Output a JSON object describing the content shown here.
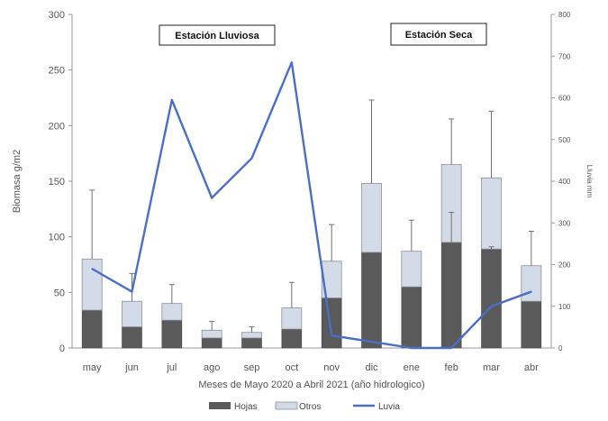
{
  "chart_data": {
    "type": "bar",
    "stacked": true,
    "categories": [
      "may",
      "jun",
      "jul",
      "ago",
      "sep",
      "oct",
      "nov",
      "dic",
      "ene",
      "feb",
      "mar",
      "abr"
    ],
    "series": [
      {
        "name": "Hojas",
        "type": "bar",
        "axis": "left",
        "color": "#5a5a5a",
        "values": [
          34,
          19,
          25,
          9,
          9,
          17,
          45,
          86,
          55,
          95,
          89,
          42
        ]
      },
      {
        "name": "Otros",
        "type": "bar",
        "axis": "left",
        "color": "#d4dbe8",
        "values": [
          46,
          23,
          15,
          7,
          5,
          19,
          33,
          62,
          32,
          70,
          64,
          32
        ]
      },
      {
        "name": "Luvia",
        "type": "line",
        "axis": "right",
        "color": "#4a6fc4",
        "values": [
          190,
          135,
          595,
          360,
          455,
          685,
          30,
          15,
          0,
          0,
          100,
          135
        ]
      }
    ],
    "error_bars_top": [
      142,
      67,
      57,
      24,
      19,
      59,
      111,
      223,
      115,
      206,
      213,
      105
    ],
    "hojas_error_top": [
      null,
      null,
      null,
      null,
      null,
      null,
      null,
      null,
      null,
      122,
      91,
      null
    ],
    "xlabel": "Meses de Mayo 2020 a Abril 2021 (año hidrologico)",
    "ylabel_left": "Biomasa g/m2",
    "ylabel_right": "Lluvia mm",
    "ylim_left": [
      0,
      300
    ],
    "ylim_right": [
      0,
      800
    ],
    "yticks_left": [
      0,
      50,
      100,
      150,
      200,
      250,
      300
    ],
    "yticks_right": [
      0,
      100,
      200,
      300,
      400,
      500,
      600,
      700,
      800
    ],
    "grid": false,
    "legend_position": "bottom",
    "annotations": [
      "Estación Lluviosa",
      "Estación Seca"
    ]
  }
}
